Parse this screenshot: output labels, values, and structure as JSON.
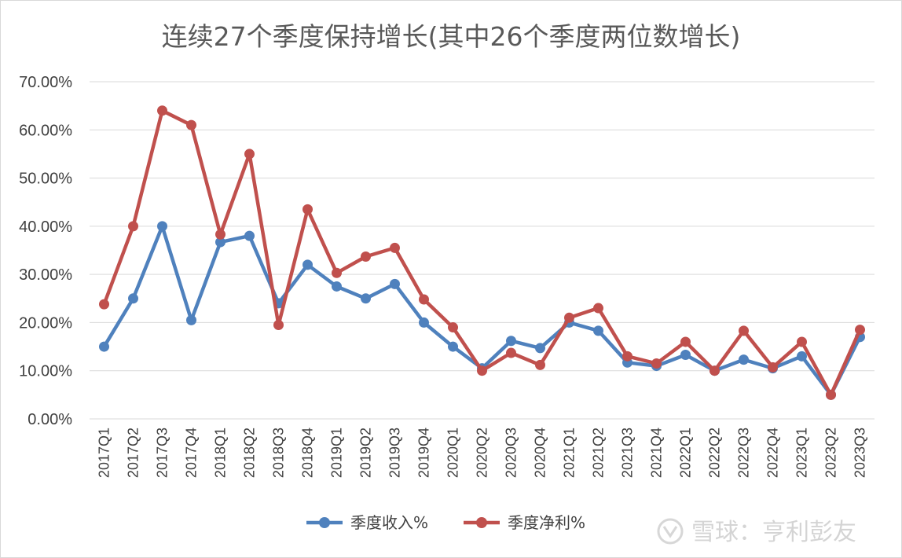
{
  "chart_data": {
    "type": "line",
    "title": "连续27个季度保持增长(其中26个季度两位数增长)",
    "xlabel": "",
    "ylabel": "",
    "ylim": [
      0,
      0.7
    ],
    "yticks": [
      "0.00%",
      "10.00%",
      "20.00%",
      "30.00%",
      "40.00%",
      "50.00%",
      "60.00%",
      "70.00%"
    ],
    "grid": true,
    "legend": "bottom",
    "categories": [
      "2017Q1",
      "2017Q2",
      "2017Q3",
      "2017Q4",
      "2018Q1",
      "2018Q2",
      "2018Q3",
      "2018Q4",
      "2019Q1",
      "2019Q2",
      "2019Q3",
      "2019Q4",
      "2020Q1",
      "2020Q2",
      "2020Q3",
      "2020Q4",
      "2021Q1",
      "2021Q2",
      "2021Q3",
      "2021Q4",
      "2022Q1",
      "2022Q2",
      "2022Q3",
      "2022Q4",
      "2023Q1",
      "2023Q2",
      "2023Q3"
    ],
    "series": [
      {
        "name": "季度收入%",
        "color": "#4F81BD",
        "values": [
          0.15,
          0.25,
          0.4,
          0.205,
          0.367,
          0.38,
          0.24,
          0.32,
          0.275,
          0.25,
          0.28,
          0.2,
          0.15,
          0.105,
          0.162,
          0.147,
          0.2,
          0.183,
          0.117,
          0.11,
          0.133,
          0.1,
          0.123,
          0.105,
          0.13,
          0.05,
          0.17
        ]
      },
      {
        "name": "季度净利%",
        "color": "#C0504D",
        "values": [
          0.238,
          0.4,
          0.64,
          0.61,
          0.383,
          0.55,
          0.195,
          0.435,
          0.303,
          0.337,
          0.355,
          0.248,
          0.19,
          0.1,
          0.137,
          0.112,
          0.21,
          0.23,
          0.13,
          0.115,
          0.16,
          0.1,
          0.183,
          0.107,
          0.16,
          0.05,
          0.185
        ]
      }
    ]
  },
  "watermark": {
    "icon": "snowball-logo-icon",
    "text": "雪球：亨利彭友"
  }
}
